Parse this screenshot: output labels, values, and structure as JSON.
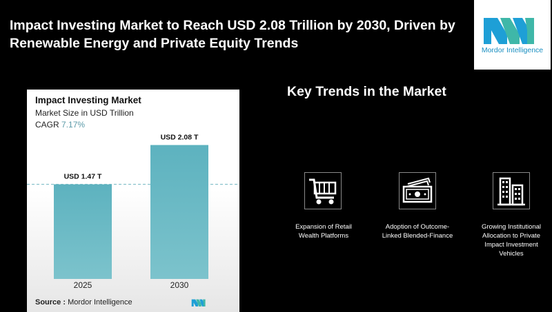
{
  "headline": "Impact Investing Market to Reach USD 2.08 Trillion by 2030, Driven by Renewable Energy and Private Equity Trends",
  "logo": {
    "text": "Mordor Intelligence",
    "color": "#1b8fc1"
  },
  "chart_data": {
    "type": "bar",
    "title": "Impact Investing Market",
    "subtitle": "Market Size in USD Trillion",
    "cagr_label": "CAGR",
    "cagr_value": "7.17%",
    "categories": [
      "2025",
      "2030"
    ],
    "values": [
      1.47,
      2.08
    ],
    "data_labels": [
      "USD 1.47 T",
      "USD 2.08 T"
    ],
    "ylim": [
      0,
      2.3
    ],
    "grid": false,
    "bar_color": "#7cc3cc",
    "bar_color_top": "#5db2bf",
    "reference_line": "dashed at 2025 value",
    "source_label": "Source :",
    "source_text": "Mordor Intelligence"
  },
  "trends": {
    "heading": "Key Trends in the Market",
    "items": [
      {
        "icon": "shopping-cart-icon",
        "label": "Expansion of Retail Wealth Platforms"
      },
      {
        "icon": "banknote-icon",
        "label": "Adoption of Outcome-Linked Blended-Finance"
      },
      {
        "icon": "buildings-icon",
        "label": "Growing Institutional Allocation to Private Impact Investment Vehicles"
      }
    ]
  }
}
